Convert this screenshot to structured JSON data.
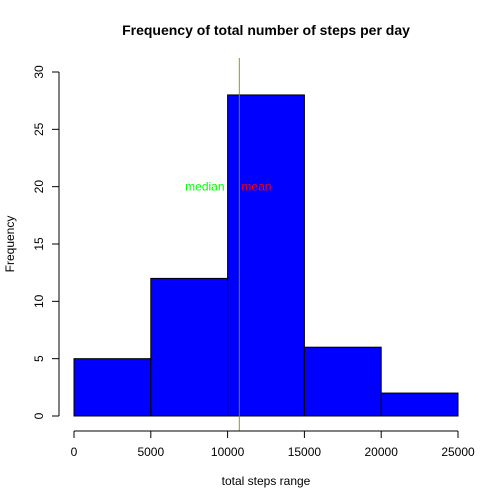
{
  "chart_data": {
    "type": "bar",
    "title": "Frequency of total number of steps per day",
    "xlabel": "total steps range",
    "ylabel": "Frequency",
    "bins": [
      {
        "from": 0,
        "to": 5000,
        "count": 5
      },
      {
        "from": 5000,
        "to": 10000,
        "count": 12
      },
      {
        "from": 10000,
        "to": 15000,
        "count": 28
      },
      {
        "from": 15000,
        "to": 20000,
        "count": 6
      },
      {
        "from": 20000,
        "to": 25000,
        "count": 2
      }
    ],
    "xlim": [
      0,
      25000
    ],
    "ylim": [
      0,
      30
    ],
    "x_ticks": [
      0,
      5000,
      10000,
      15000,
      20000,
      25000
    ],
    "y_ticks": [
      0,
      5,
      10,
      15,
      20,
      25,
      30
    ],
    "bar_color": "#0000ff",
    "reference_lines": [
      {
        "name": "mean",
        "x": 10766,
        "color": "#ff0000"
      },
      {
        "name": "median",
        "x": 10765,
        "color": "#00ff00"
      }
    ],
    "annotations": [
      {
        "label": "median",
        "x": 9800,
        "y": 20,
        "color": "#00ff00",
        "anchor": "end"
      },
      {
        "label": "mean",
        "x": 10900,
        "y": 20,
        "color": "#ff0000",
        "anchor": "start"
      }
    ],
    "grid": false
  }
}
